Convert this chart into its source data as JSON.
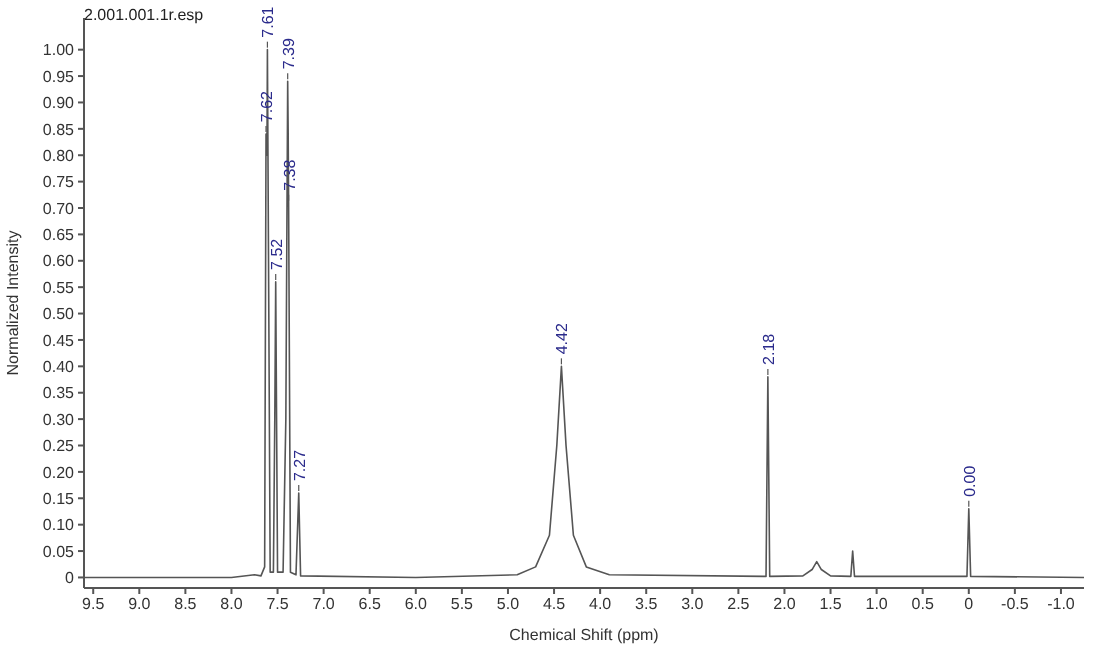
{
  "chart_data": {
    "type": "line",
    "title": "2.001.001.1r.esp",
    "xlabel": "Chemical Shift (ppm)",
    "ylabel": "Normalized Intensity",
    "x": [
      9.6,
      8.0,
      7.75,
      7.68,
      7.64,
      7.625,
      7.615,
      7.61,
      7.58,
      7.545,
      7.53,
      7.52,
      7.5,
      7.44,
      7.41,
      7.39,
      7.385,
      7.38,
      7.36,
      7.3,
      7.27,
      7.25,
      6.0,
      4.9,
      4.7,
      4.55,
      4.47,
      4.42,
      4.37,
      4.29,
      4.15,
      3.9,
      2.2,
      2.18,
      2.16,
      1.8,
      1.7,
      1.65,
      1.6,
      1.5,
      1.28,
      1.26,
      1.24,
      0.02,
      0.0,
      -0.02,
      -1.25
    ],
    "series": [
      {
        "color": "#555555",
        "values": [
          0,
          0,
          0.005,
          0.003,
          0.02,
          0.84,
          0.8,
          1.0,
          0.01,
          0.01,
          0.3,
          0.56,
          0.01,
          0.01,
          0.3,
          0.94,
          0.85,
          0.71,
          0.01,
          0.005,
          0.16,
          0.003,
          0,
          0.005,
          0.02,
          0.08,
          0.25,
          0.4,
          0.25,
          0.08,
          0.02,
          0.005,
          0.002,
          0.38,
          0.002,
          0.003,
          0.015,
          0.03,
          0.015,
          0.003,
          0.002,
          0.05,
          0.002,
          0.002,
          0.13,
          0.002,
          0
        ]
      }
    ],
    "xlim": [
      9.6,
      -1.25
    ],
    "xticks": [
      9.5,
      {
        "value": 9,
        "label": "9.0"
      },
      8.5,
      {
        "value": 8,
        "label": "8.0"
      },
      7.5,
      {
        "value": 7,
        "label": "7.0"
      },
      6.5,
      {
        "value": 6,
        "label": "6.0"
      },
      5.5,
      {
        "value": 5,
        "label": "5.0"
      },
      4.5,
      {
        "value": 4,
        "label": "4.0"
      },
      3.5,
      {
        "value": 3,
        "label": "3.0"
      },
      2.5,
      {
        "value": 2,
        "label": "2.0"
      },
      1.5,
      {
        "value": 1,
        "label": "1.0"
      },
      0.5,
      0,
      -0.5,
      {
        "value": -1,
        "label": "-1.0"
      }
    ],
    "ylim": [
      -0.02,
      1.06
    ],
    "yticks": [
      0,
      0.05,
      {
        "value": 0.1,
        "label": "0.10"
      },
      0.15,
      {
        "value": 0.2,
        "label": "0.20"
      },
      0.25,
      {
        "value": 0.3,
        "label": "0.30"
      },
      0.35,
      {
        "value": 0.4,
        "label": "0.40"
      },
      0.45,
      {
        "value": 0.5,
        "label": "0.50"
      },
      0.55,
      {
        "value": 0.6,
        "label": "0.60"
      },
      0.65,
      {
        "value": 0.7,
        "label": "0.70"
      },
      0.75,
      {
        "value": 0.8,
        "label": "0.80"
      },
      0.85,
      {
        "value": 0.9,
        "label": "0.90"
      },
      0.95,
      {
        "value": 1,
        "label": "1.00"
      }
    ],
    "annotations": [
      {
        "text": "7.62",
        "x": 7.625,
        "y": 0.84
      },
      {
        "text": "7.61",
        "x": 7.61,
        "y": 1.0
      },
      {
        "text": "7.52",
        "x": 7.52,
        "y": 0.56
      },
      {
        "text": "7.39",
        "x": 7.39,
        "y": 0.94
      },
      {
        "text": "7.38",
        "x": 7.38,
        "y": 0.71
      },
      {
        "text": "7.27",
        "x": 7.27,
        "y": 0.16
      },
      {
        "text": "4.42",
        "x": 4.42,
        "y": 0.4
      },
      {
        "text": "2.18",
        "x": 2.18,
        "y": 0.38
      },
      {
        "text": "0.00",
        "x": 0.0,
        "y": 0.13
      }
    ],
    "grid": false,
    "legend": false,
    "marker": "none",
    "line_style": "solid"
  }
}
